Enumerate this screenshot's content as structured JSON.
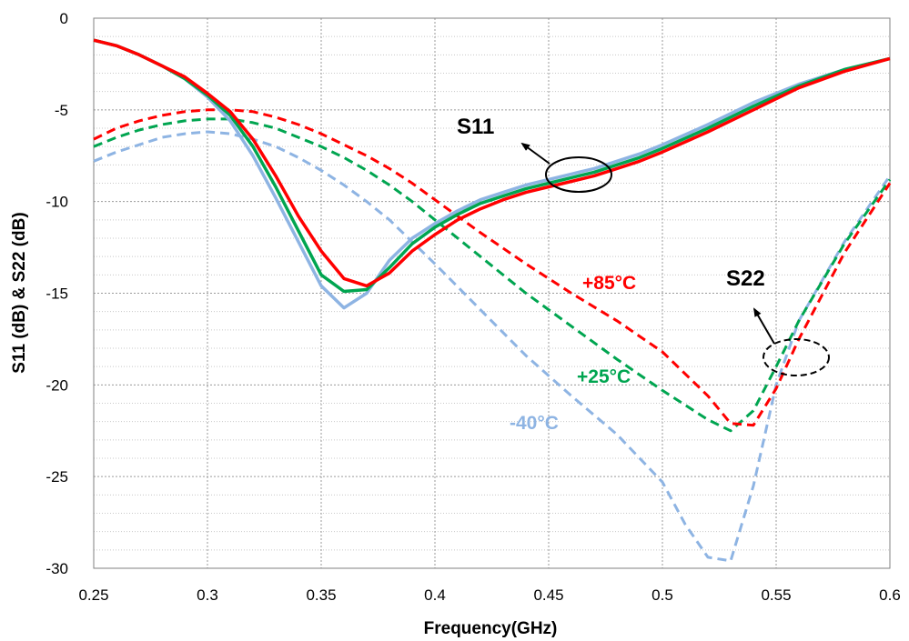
{
  "chart_data": {
    "type": "line",
    "xlabel": "Frequency(GHz)",
    "ylabel": "S11 (dB) & S22 (dB)",
    "xlim": [
      0.25,
      0.6
    ],
    "ylim": [
      -30,
      0
    ],
    "x_ticks": [
      "0.25",
      "0.3",
      "0.35",
      "0.4",
      "0.45",
      "0.5",
      "0.55",
      "0.6"
    ],
    "y_ticks": [
      "0",
      "-5",
      "-10",
      "-15",
      "-20",
      "-25",
      "-30"
    ],
    "grid": "major and minor gridlines, dotted",
    "colors": {
      "minus40": "#8EB4E3",
      "plus25": "#00A550",
      "plus85": "#FF0000"
    },
    "series": [
      {
        "group": "S11",
        "temp": "-40°C",
        "color": "#8EB4E3",
        "style": "solid",
        "x": [
          0.25,
          0.26,
          0.27,
          0.28,
          0.29,
          0.3,
          0.31,
          0.32,
          0.33,
          0.34,
          0.35,
          0.36,
          0.37,
          0.38,
          0.39,
          0.4,
          0.41,
          0.42,
          0.43,
          0.44,
          0.45,
          0.46,
          0.47,
          0.48,
          0.49,
          0.5,
          0.52,
          0.54,
          0.56,
          0.58,
          0.6
        ],
        "y": [
          -1.2,
          -1.5,
          -2.0,
          -2.6,
          -3.3,
          -4.3,
          -5.6,
          -7.5,
          -9.8,
          -12.2,
          -14.6,
          -15.8,
          -15.0,
          -13.2,
          -12.0,
          -11.2,
          -10.5,
          -9.9,
          -9.5,
          -9.1,
          -8.8,
          -8.5,
          -8.2,
          -7.8,
          -7.4,
          -6.9,
          -5.8,
          -4.6,
          -3.6,
          -2.8,
          -2.2
        ]
      },
      {
        "group": "S11",
        "temp": "+25°C",
        "color": "#00A550",
        "style": "solid",
        "x": [
          0.25,
          0.26,
          0.27,
          0.28,
          0.29,
          0.3,
          0.31,
          0.32,
          0.33,
          0.34,
          0.35,
          0.36,
          0.37,
          0.38,
          0.39,
          0.4,
          0.41,
          0.42,
          0.43,
          0.44,
          0.45,
          0.46,
          0.47,
          0.48,
          0.49,
          0.5,
          0.52,
          0.54,
          0.56,
          0.58,
          0.6
        ],
        "y": [
          -1.2,
          -1.5,
          -2.0,
          -2.6,
          -3.3,
          -4.2,
          -5.3,
          -7.0,
          -9.2,
          -11.6,
          -14.0,
          -14.9,
          -14.8,
          -13.6,
          -12.3,
          -11.4,
          -10.7,
          -10.1,
          -9.7,
          -9.3,
          -9.0,
          -8.7,
          -8.4,
          -8.0,
          -7.6,
          -7.1,
          -6.0,
          -4.8,
          -3.7,
          -2.8,
          -2.2
        ]
      },
      {
        "group": "S11",
        "temp": "+85°C",
        "color": "#FF0000",
        "style": "solid",
        "x": [
          0.25,
          0.26,
          0.27,
          0.28,
          0.29,
          0.3,
          0.31,
          0.32,
          0.33,
          0.34,
          0.35,
          0.36,
          0.37,
          0.38,
          0.39,
          0.4,
          0.41,
          0.42,
          0.43,
          0.44,
          0.45,
          0.46,
          0.47,
          0.48,
          0.49,
          0.5,
          0.52,
          0.54,
          0.56,
          0.58,
          0.6
        ],
        "y": [
          -1.2,
          -1.5,
          -2.0,
          -2.6,
          -3.2,
          -4.1,
          -5.1,
          -6.6,
          -8.6,
          -10.8,
          -12.7,
          -14.2,
          -14.6,
          -13.9,
          -12.7,
          -11.8,
          -11.0,
          -10.4,
          -9.9,
          -9.5,
          -9.2,
          -8.9,
          -8.6,
          -8.2,
          -7.8,
          -7.3,
          -6.2,
          -5.0,
          -3.8,
          -2.9,
          -2.2
        ]
      },
      {
        "group": "S22",
        "temp": "-40°C",
        "color": "#8EB4E3",
        "style": "dashed",
        "x": [
          0.25,
          0.26,
          0.27,
          0.28,
          0.29,
          0.3,
          0.31,
          0.32,
          0.33,
          0.34,
          0.35,
          0.36,
          0.37,
          0.38,
          0.39,
          0.4,
          0.42,
          0.44,
          0.46,
          0.48,
          0.5,
          0.51,
          0.52,
          0.53,
          0.54,
          0.55,
          0.56,
          0.58,
          0.6
        ],
        "y": [
          -7.8,
          -7.3,
          -6.9,
          -6.5,
          -6.3,
          -6.2,
          -6.3,
          -6.6,
          -7.0,
          -7.6,
          -8.3,
          -9.1,
          -10.0,
          -11.0,
          -12.2,
          -13.4,
          -15.9,
          -18.4,
          -20.6,
          -22.7,
          -25.3,
          -27.6,
          -29.4,
          -29.6,
          -25.5,
          -20.0,
          -16.5,
          -12.2,
          -8.6
        ]
      },
      {
        "group": "S22",
        "temp": "+25°C",
        "color": "#00A550",
        "style": "dashed",
        "x": [
          0.25,
          0.26,
          0.27,
          0.28,
          0.29,
          0.3,
          0.31,
          0.32,
          0.33,
          0.34,
          0.35,
          0.36,
          0.37,
          0.38,
          0.39,
          0.4,
          0.42,
          0.44,
          0.46,
          0.48,
          0.5,
          0.52,
          0.53,
          0.54,
          0.55,
          0.56,
          0.58,
          0.6
        ],
        "y": [
          -7.0,
          -6.5,
          -6.1,
          -5.8,
          -5.6,
          -5.5,
          -5.5,
          -5.7,
          -6.0,
          -6.5,
          -7.0,
          -7.6,
          -8.3,
          -9.1,
          -10.0,
          -11.0,
          -13.0,
          -15.0,
          -16.8,
          -18.6,
          -20.3,
          -21.9,
          -22.5,
          -21.4,
          -19.0,
          -16.5,
          -12.3,
          -8.8
        ]
      },
      {
        "group": "S22",
        "temp": "+85°C",
        "color": "#FF0000",
        "style": "dashed",
        "x": [
          0.25,
          0.26,
          0.27,
          0.28,
          0.29,
          0.3,
          0.31,
          0.32,
          0.33,
          0.34,
          0.35,
          0.36,
          0.37,
          0.38,
          0.39,
          0.4,
          0.42,
          0.44,
          0.46,
          0.48,
          0.5,
          0.52,
          0.53,
          0.54,
          0.55,
          0.56,
          0.58,
          0.6
        ],
        "y": [
          -6.6,
          -6.0,
          -5.6,
          -5.3,
          -5.1,
          -5.0,
          -5.0,
          -5.1,
          -5.4,
          -5.8,
          -6.3,
          -6.9,
          -7.5,
          -8.2,
          -9.0,
          -9.9,
          -11.7,
          -13.4,
          -15.0,
          -16.5,
          -18.2,
          -20.6,
          -22.1,
          -22.2,
          -20.2,
          -17.5,
          -12.8,
          -9.0
        ]
      }
    ],
    "annotations": [
      {
        "text": "S11",
        "color": "#000000"
      },
      {
        "text": "S22",
        "color": "#000000"
      },
      {
        "text": "+85°C",
        "color": "#FF0000"
      },
      {
        "text": "+25°C",
        "color": "#00A550"
      },
      {
        "text": "-40°C",
        "color": "#8EB4E3"
      }
    ]
  }
}
